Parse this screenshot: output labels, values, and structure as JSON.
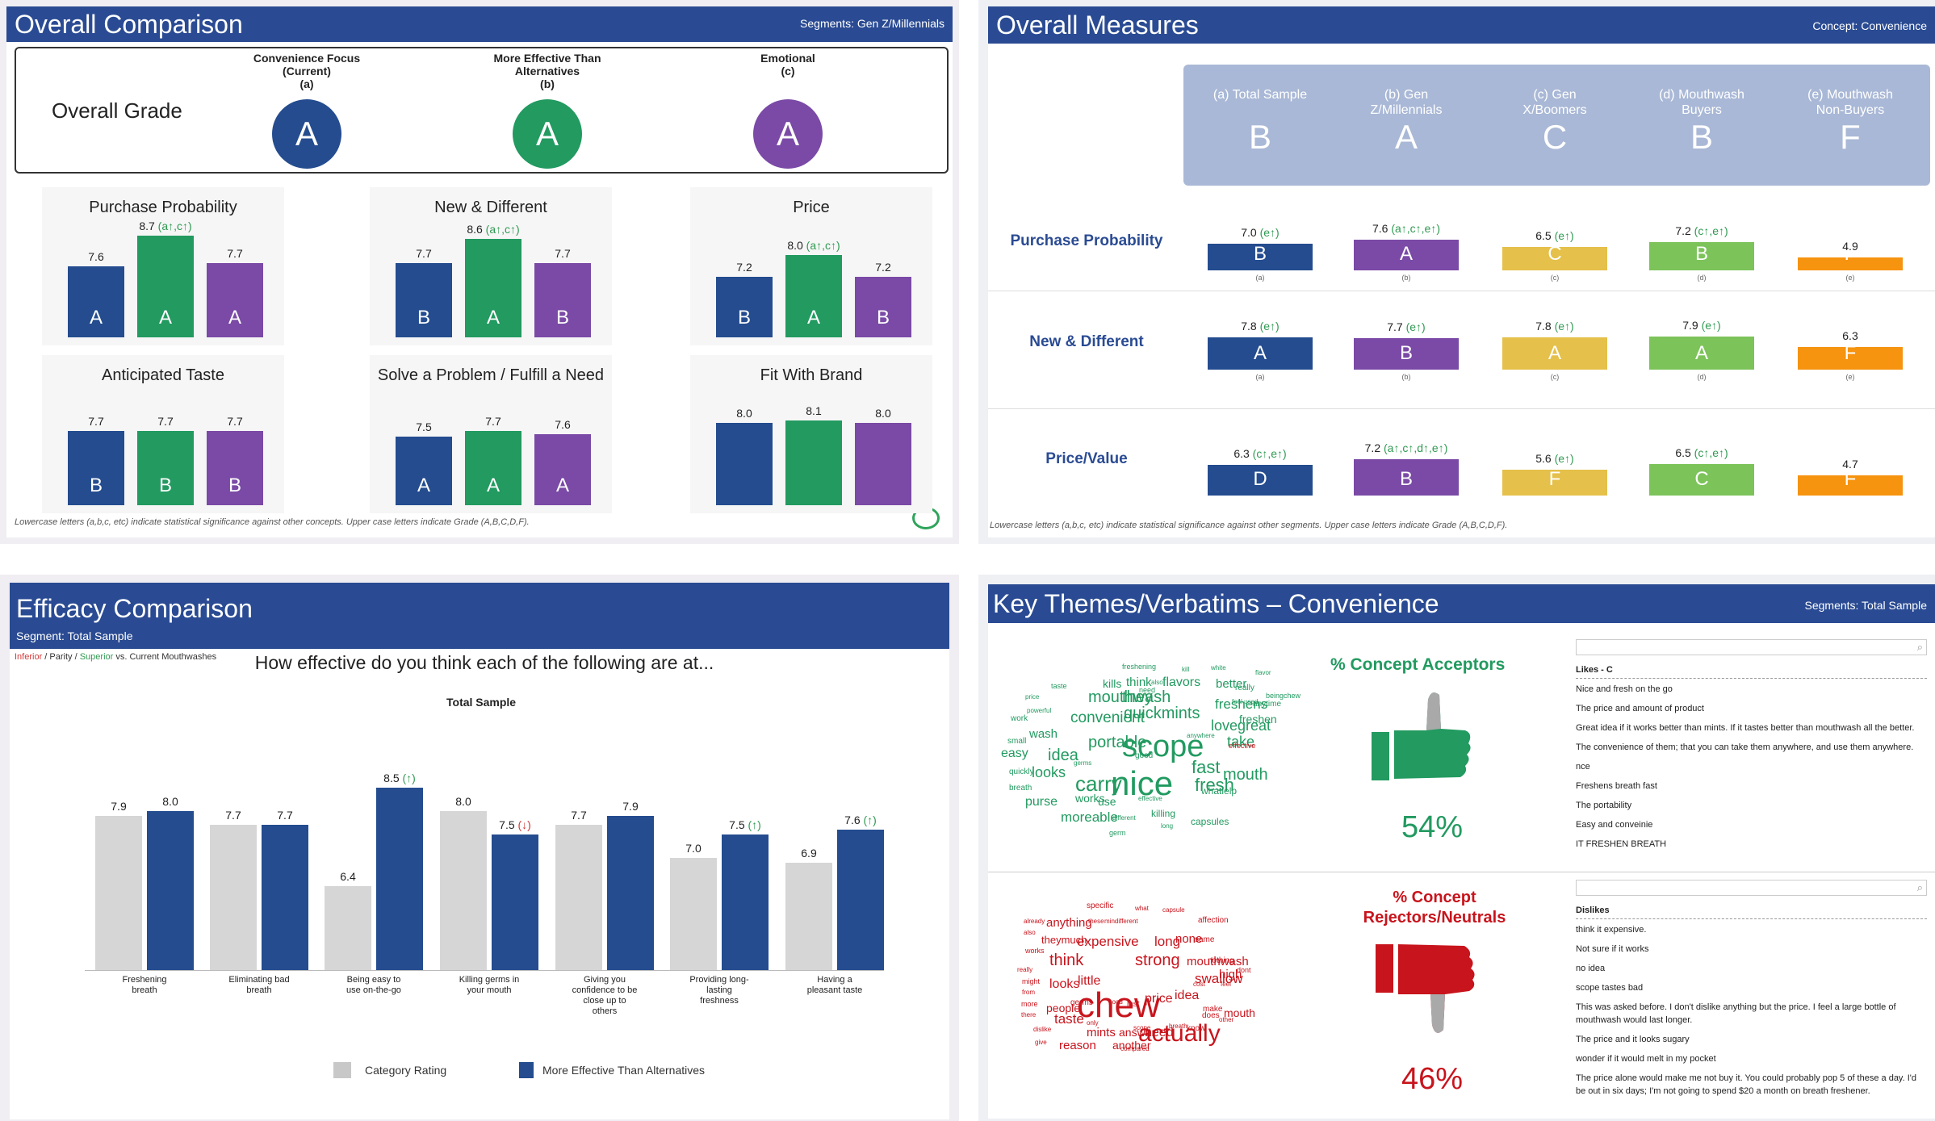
{
  "p1": {
    "title": "Overall Comparison",
    "segments": "Segments: Gen Z/Millennials",
    "grade_label": "Overall Grade",
    "concepts": [
      {
        "name_l1": "Convenience Focus",
        "name_l2": "(Current)",
        "letter": "(a)",
        "grade": "A"
      },
      {
        "name_l1": "More Effective Than",
        "name_l2": "Alternatives",
        "letter": "(b)",
        "grade": "A"
      },
      {
        "name_l1": "Emotional",
        "name_l2": "",
        "letter": "(c)",
        "grade": "A"
      }
    ],
    "cards": [
      {
        "title": "Purchase Probability",
        "bars": [
          {
            "v": "7.6",
            "s": "",
            "g": "A"
          },
          {
            "v": "8.7",
            "s": "(a↑,c↑)",
            "g": "A"
          },
          {
            "v": "7.7",
            "s": "",
            "g": "A"
          }
        ]
      },
      {
        "title": "New & Different",
        "bars": [
          {
            "v": "7.7",
            "s": "",
            "g": "B"
          },
          {
            "v": "8.6",
            "s": "(a↑,c↑)",
            "g": "A"
          },
          {
            "v": "7.7",
            "s": "",
            "g": "B"
          }
        ]
      },
      {
        "title": "Price",
        "bars": [
          {
            "v": "7.2",
            "s": "",
            "g": "B"
          },
          {
            "v": "8.0",
            "s": "(a↑,c↑)",
            "g": "A"
          },
          {
            "v": "7.2",
            "s": "",
            "g": "B"
          }
        ]
      },
      {
        "title": "Anticipated Taste",
        "bars": [
          {
            "v": "7.7",
            "s": "",
            "g": "B"
          },
          {
            "v": "7.7",
            "s": "",
            "g": "B"
          },
          {
            "v": "7.7",
            "s": "",
            "g": "B"
          }
        ]
      },
      {
        "title": "Solve a Problem / Fulfill a Need",
        "bars": [
          {
            "v": "7.5",
            "s": "",
            "g": "A"
          },
          {
            "v": "7.7",
            "s": "",
            "g": "A"
          },
          {
            "v": "7.6",
            "s": "",
            "g": "A"
          }
        ]
      },
      {
        "title": "Fit With Brand",
        "bars": [
          {
            "v": "8.0",
            "s": "",
            "g": ""
          },
          {
            "v": "8.1",
            "s": "",
            "g": ""
          },
          {
            "v": "8.0",
            "s": "",
            "g": ""
          }
        ]
      }
    ],
    "footnote": "Lowercase letters (a,b,c, etc) indicate statistical significance against other concepts. Upper case letters indicate Grade (A,B,C,D,F)."
  },
  "p2": {
    "title": "Overall Measures",
    "concept": "Concept: Convenience",
    "segments": [
      {
        "l1": "(a) Total Sample",
        "l2": "",
        "grade": "B",
        "tag": "(a)"
      },
      {
        "l1": "(b) Gen",
        "l2": "Z/Millennials",
        "grade": "A",
        "tag": "(b)"
      },
      {
        "l1": "(c) Gen",
        "l2": "X/Boomers",
        "grade": "C",
        "tag": "(c)"
      },
      {
        "l1": "(d) Mouthwash",
        "l2": "Buyers",
        "grade": "B",
        "tag": "(d)"
      },
      {
        "l1": "(e) Mouthwash",
        "l2": "Non-Buyers",
        "grade": "F",
        "tag": "(e)"
      }
    ],
    "rows": [
      {
        "label": "Purchase Probability",
        "cells": [
          {
            "v": "7.0",
            "s": "(e↑)",
            "g": "B"
          },
          {
            "v": "7.6",
            "s": "(a↑,c↑,e↑)",
            "g": "A"
          },
          {
            "v": "6.5",
            "s": "(e↑)",
            "g": "C"
          },
          {
            "v": "7.2",
            "s": "(c↑,e↑)",
            "g": "B"
          },
          {
            "v": "4.9",
            "s": "",
            "g": "F"
          }
        ]
      },
      {
        "label": "New & Different",
        "cells": [
          {
            "v": "7.8",
            "s": "(e↑)",
            "g": "A"
          },
          {
            "v": "7.7",
            "s": "(e↑)",
            "g": "B"
          },
          {
            "v": "7.8",
            "s": "(e↑)",
            "g": "A"
          },
          {
            "v": "7.9",
            "s": "(e↑)",
            "g": "A"
          },
          {
            "v": "6.3",
            "s": "",
            "g": "F"
          }
        ]
      },
      {
        "label": "Price/Value",
        "cells": [
          {
            "v": "6.3",
            "s": "(c↑,e↑)",
            "g": "D"
          },
          {
            "v": "7.2",
            "s": "(a↑,c↑,d↑,e↑)",
            "g": "B"
          },
          {
            "v": "5.6",
            "s": "(e↑)",
            "g": "F"
          },
          {
            "v": "6.5",
            "s": "(c↑,e↑)",
            "g": "C"
          },
          {
            "v": "4.7",
            "s": "",
            "g": "F"
          }
        ]
      }
    ],
    "footnote": "Lowercase letters (a,b,c, etc) indicate statistical significance against other segments. Upper case letters indicate Grade (A,B,C,D,F)."
  },
  "p3": {
    "title": "Efficacy Comparison",
    "segment": "Segment: Total Sample",
    "legend_inferior": "Inferior",
    "legend_sep1": " / Parity / ",
    "legend_superior": "Superior",
    "legend_tail": " vs. Current Mouthwashes",
    "question": "How effective do you think each of the following are at...",
    "chart_title": "Total Sample",
    "legend_cat": "Category Rating",
    "legend_more": "More Effective Than Alternatives"
  },
  "chart_data": {
    "type": "bar",
    "title": "Total Sample",
    "categories": [
      "Freshening breath",
      "Eliminating bad breath",
      "Being easy to use on-the-go",
      "Killing germs in your mouth",
      "Giving you confidence to be close up to others",
      "Providing long-lasting freshness",
      "Having a pleasant taste"
    ],
    "category_lines": [
      [
        "Freshening",
        "breath"
      ],
      [
        "Eliminating bad",
        "breath"
      ],
      [
        "Being easy to",
        "use on-the-go"
      ],
      [
        "Killing germs in",
        "your mouth"
      ],
      [
        "Giving you",
        "confidence to be",
        "close up to",
        "others"
      ],
      [
        "Providing long-",
        "lasting",
        "freshness"
      ],
      [
        "Having a",
        "pleasant taste"
      ]
    ],
    "series": [
      {
        "name": "Category Rating",
        "values": [
          7.9,
          7.7,
          6.4,
          8.0,
          7.7,
          7.0,
          6.9
        ],
        "labels": [
          "7.9",
          "7.7",
          "6.4",
          "8.0",
          "7.7",
          "7.0",
          "6.9"
        ],
        "color": "#d6d6d6"
      },
      {
        "name": "More Effective Than Alternatives",
        "values": [
          8.0,
          7.7,
          8.5,
          7.5,
          7.9,
          7.5,
          7.6
        ],
        "labels": [
          "8.0",
          "7.7",
          "8.5",
          "7.5",
          "7.9",
          "7.5",
          "7.6"
        ],
        "marks": [
          "",
          "",
          "(↑)",
          "(↓)",
          "",
          "(↑)",
          "(↑)"
        ],
        "color": "#244c8f"
      }
    ],
    "ylim": [
      0,
      10
    ]
  },
  "p4": {
    "title": "Key Themes/Verbatims – Convenience",
    "segments": "Segments: Total Sample",
    "acceptors_label": "% Concept Acceptors",
    "acceptors_pct": "54%",
    "rejectors_l1": "% Concept",
    "rejectors_l2": "Rejectors/Neutrals",
    "rejectors_pct": "46%",
    "likes_header": "Likes - C",
    "likes": [
      "Nice and fresh on the go",
      "The price and amount of product",
      "Great idea if it works better than mints. If it tastes better than mouthwash all the better.",
      "The convenience of them; that you can take them anywhere, and use them anywhere.",
      "nce",
      "Freshens breath fast",
      "The portability",
      "Easy and conveinie",
      "IT FRESHEN BREATH"
    ],
    "dislikes_header": "Dislikes",
    "dislikes": [
      "think it expensive.",
      "Not sure if it works",
      "no idea",
      "scope tastes bad",
      "This was asked before. I don't dislike anything but the price. I feel a large bottle of",
      "mouthwash would last longer.",
      "The price and it looks sugary",
      "wonder if it would melt in my pocket",
      "The price alone would make me not buy it. You could probably pop 5 of these a day. I'd",
      "be out in six days; I'm not going to spend $20 a month on breath freshener."
    ],
    "likes_words": [
      "freshening",
      "kill",
      "white",
      "flavor",
      "taste",
      "kills",
      "think",
      "also",
      "flavors",
      "better",
      "really",
      "beingchew",
      "price",
      "mouthwash",
      "they",
      "freshens",
      "feel used",
      "anytime",
      "powerful",
      "work",
      "convenient",
      "quickmints",
      "lovegreat",
      "freshen",
      "small",
      "wash",
      "portable",
      "scope",
      "take",
      "anywhere",
      "easy",
      "idea",
      "germs",
      "good",
      "fast",
      "mouth",
      "quickly",
      "looks",
      "carry",
      "nice",
      "fresh",
      "breath",
      "purse",
      "works",
      "use",
      "effective",
      "whatlelp",
      "moreable",
      "different",
      "killing",
      "capsules",
      "long",
      "germ",
      "need"
    ],
    "dislikes_words": [
      "specific",
      "what",
      "capsule",
      "already",
      "anything",
      "these",
      "mindifferent",
      "affection",
      "also",
      "theymuch",
      "expensive",
      "long",
      "none",
      "same",
      "works",
      "think",
      "strong",
      "mouthwash",
      "nothing",
      "really",
      "swallow",
      "high",
      "dont",
      "might",
      "looks",
      "little",
      "cost",
      "feel",
      "from",
      "chew",
      "price",
      "idea",
      "more",
      "people",
      "germs",
      "good",
      "last",
      "make",
      "mouth",
      "there",
      "taste",
      "only",
      "actually",
      "does",
      "other",
      "dislike",
      "mints",
      "answer",
      "scope",
      "need",
      "breath",
      "know",
      "give",
      "reason",
      "another",
      "compared",
      "effective"
    ]
  }
}
